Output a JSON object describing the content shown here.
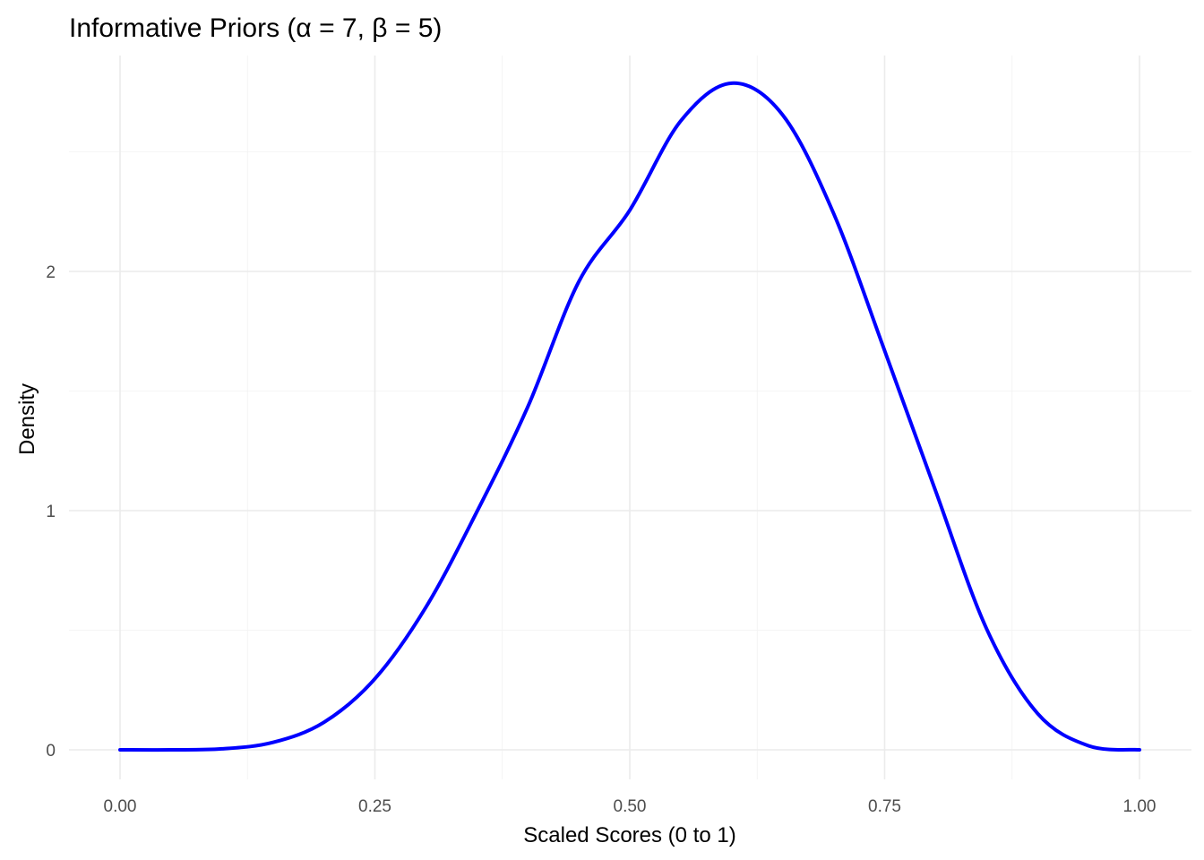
{
  "chart_data": {
    "type": "line",
    "title": "Informative Priors (α = 7, β = 5)",
    "xlabel": "Scaled Scores (0 to 1)",
    "ylabel": "Density",
    "xlim": [
      0,
      1
    ],
    "ylim": [
      0,
      2.75
    ],
    "x_ticks": [
      0,
      0.25,
      0.5,
      0.75,
      1
    ],
    "x_tick_labels": [
      "0.00",
      "0.25",
      "0.50",
      "0.75",
      "1.00"
    ],
    "y_ticks": [
      0,
      1,
      2
    ],
    "y_tick_labels": [
      "0",
      "1",
      "2"
    ],
    "grid": true,
    "legend": "none",
    "series": [
      {
        "color": "#0000ff",
        "x": [
          0.0,
          0.05,
          0.1,
          0.15,
          0.2,
          0.25,
          0.3,
          0.35,
          0.4,
          0.45,
          0.5,
          0.55,
          0.6,
          0.65,
          0.7,
          0.75,
          0.8,
          0.85,
          0.9,
          0.95,
          1.0
        ],
        "y": [
          0.0,
          0.0,
          0.004,
          0.031,
          0.115,
          0.297,
          0.596,
          0.995,
          1.434,
          1.957,
          2.256,
          2.629,
          2.787,
          2.654,
          2.242,
          1.669,
          1.082,
          0.506,
          0.152,
          0.017,
          0.0
        ]
      }
    ]
  }
}
